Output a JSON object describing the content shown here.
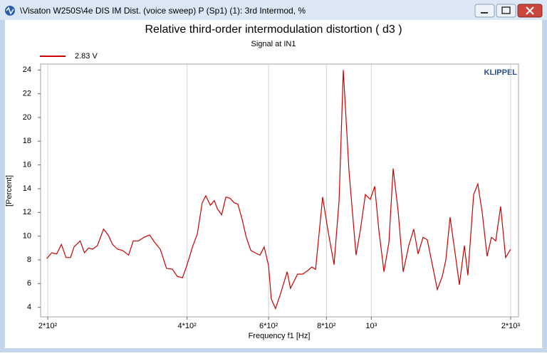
{
  "window_title": "\\Visaton W250S\\4e DIS IM Dist. (voice sweep) P (Sp1) (1): 3rd Intermod, %",
  "chart_data": {
    "type": "line",
    "title": "Relative third-order intermodulation distortion  ( d3 )",
    "subtitle": "Signal at IN1",
    "annotation": "KLIPPEL",
    "x_label": "Frequency f1  [Hz]",
    "y_label": "[Percent]",
    "x_scale": "log",
    "grid": true,
    "legend": "top-left",
    "xlim": [
      193,
      2080
    ],
    "ylim": [
      3.2,
      24.5
    ],
    "xticks": [
      {
        "value": 200,
        "label": "2*10²"
      },
      {
        "value": 400,
        "label": "4*10²"
      },
      {
        "value": 600,
        "label": "6*10²"
      },
      {
        "value": 800,
        "label": "8*10²"
      },
      {
        "value": 1000,
        "label": "10³"
      },
      {
        "value": 2000,
        "label": "2*10³"
      }
    ],
    "yticks": [
      4,
      6,
      8,
      10,
      12,
      14,
      16,
      18,
      20,
      22,
      24
    ],
    "x": [
      199,
      204,
      209,
      214,
      219,
      224,
      228,
      235,
      240,
      245,
      250,
      256,
      264,
      270,
      276,
      283,
      290,
      299,
      306,
      314,
      323,
      332,
      340,
      350,
      361,
      372,
      381,
      391,
      400,
      411,
      421,
      431,
      439,
      449,
      458,
      465,
      475,
      485,
      495,
      506,
      515,
      526,
      537,
      549,
      561,
      575,
      587,
      600,
      608,
      621,
      635,
      658,
      669,
      693,
      711,
      729,
      744,
      758,
      785,
      805,
      831,
      852,
      870,
      895,
      927,
      947,
      971,
      995,
      1017,
      1039,
      1065,
      1092,
      1115,
      1143,
      1172,
      1205,
      1235,
      1262,
      1294,
      1321,
      1355,
      1389,
      1423,
      1449,
      1480,
      1517,
      1550,
      1589,
      1617,
      1664,
      1699,
      1736,
      1779,
      1818,
      1857,
      1903,
      1951,
      2000
    ],
    "series": [
      {
        "name": "2.83 V",
        "color": "#cc0000",
        "values": [
          8.1,
          8.6,
          8.5,
          9.3,
          8.2,
          8.2,
          9.1,
          9.6,
          8.6,
          9.0,
          8.9,
          9.2,
          10.6,
          10.1,
          9.3,
          8.9,
          8.8,
          8.4,
          9.6,
          9.6,
          9.9,
          10.1,
          9.5,
          8.9,
          7.3,
          7.2,
          6.6,
          6.5,
          7.6,
          9.1,
          10.2,
          12.8,
          13.4,
          12.6,
          13.0,
          12.3,
          11.8,
          13.3,
          13.2,
          12.8,
          12.7,
          11.4,
          9.9,
          8.8,
          8.6,
          8.4,
          9.1,
          7.5,
          4.7,
          3.9,
          5.0,
          7.0,
          5.6,
          6.8,
          6.8,
          7.1,
          7.4,
          7.2,
          13.3,
          10.6,
          7.6,
          13.0,
          24.0,
          15.5,
          8.4,
          10.5,
          13.5,
          13.1,
          14.2,
          10.4,
          7.0,
          9.5,
          15.7,
          12.1,
          7.0,
          9.2,
          10.6,
          8.5,
          9.9,
          9.7,
          7.6,
          5.5,
          6.6,
          8.0,
          11.6,
          8.6,
          5.9,
          9.2,
          6.7,
          13.5,
          14.4,
          12.0,
          8.3,
          9.9,
          9.6,
          12.5,
          8.2,
          8.9
        ]
      }
    ]
  }
}
